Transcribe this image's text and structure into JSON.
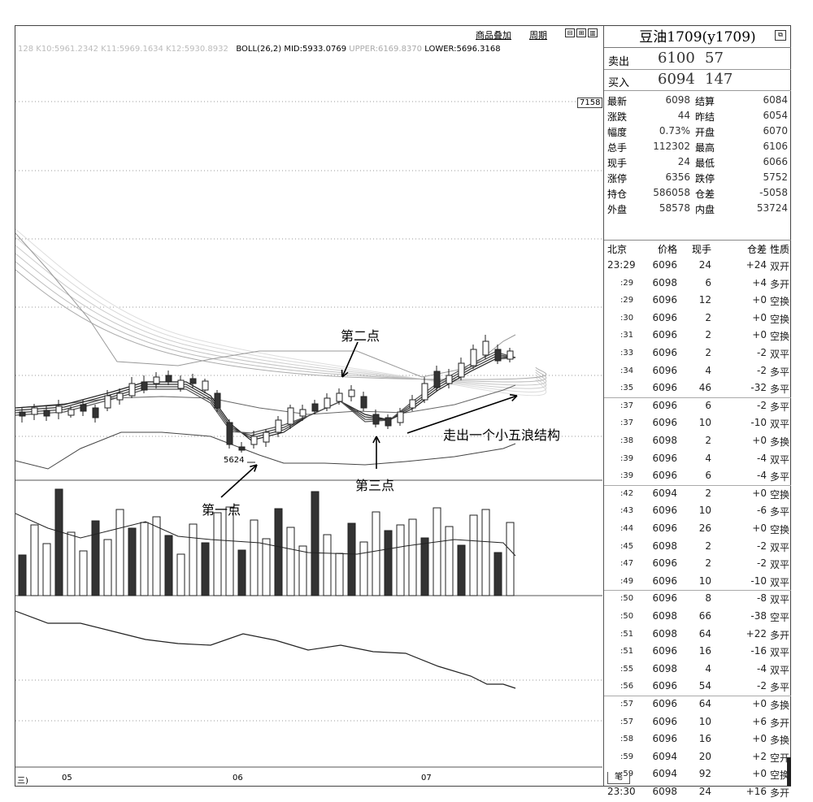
{
  "toolbar": {
    "overlay_label": "商品叠加",
    "period_label": "周期"
  },
  "indicator": {
    "faint_text": "128 K10:5961.2342 K11:5969.1634 K12:5930.8932",
    "boll_label": "BOLL(26,2)",
    "mid": "MID:5933.0769",
    "upper": "UPPER:6169.8370",
    "lower": "LOWER:5696.3168"
  },
  "price_tag": "7158",
  "annotations": {
    "point1": "第一点",
    "point2": "第二点",
    "point3": "第三点",
    "wave": "走出一个小五浪结构",
    "low_label": "5624"
  },
  "x_axis": [
    "05",
    "06",
    "07"
  ],
  "x_axis_left": "三)",
  "panel": {
    "title": "豆油1709(y1709)",
    "sell": {
      "label": "卖出",
      "price": "6100",
      "volume": "57"
    },
    "buy": {
      "label": "买入",
      "price": "6094",
      "volume": "147"
    },
    "stats": [
      [
        "最新",
        "6098",
        "结算",
        "6084"
      ],
      [
        "涨跌",
        "44",
        "昨结",
        "6054"
      ],
      [
        "幅度",
        "0.73%",
        "开盘",
        "6070"
      ],
      [
        "总手",
        "112302",
        "最高",
        "6106"
      ],
      [
        "现手",
        "24",
        "最低",
        "6066"
      ],
      [
        "涨停",
        "6356",
        "跌停",
        "5752"
      ],
      [
        "持仓",
        "586058",
        "仓差",
        "-5058"
      ],
      [
        "外盘",
        "58578",
        "内盘",
        "53724"
      ]
    ],
    "ticks_header": [
      "北京",
      "价格",
      "现手",
      "仓差",
      "性质"
    ],
    "ticks": [
      [
        "23:29",
        "6096",
        "24",
        "+24",
        "双开"
      ],
      [
        ":29",
        "6098",
        "6",
        "+4",
        "多开"
      ],
      [
        ":29",
        "6096",
        "12",
        "+0",
        "空换"
      ],
      [
        ":30",
        "6096",
        "2",
        "+0",
        "空换"
      ],
      [
        ":31",
        "6096",
        "2",
        "+0",
        "空换"
      ],
      [
        ":33",
        "6096",
        "2",
        "-2",
        "双平"
      ],
      [
        ":34",
        "6096",
        "4",
        "-2",
        "多平"
      ],
      [
        ":35",
        "6096",
        "46",
        "-32",
        "多平"
      ],
      [
        ":37",
        "6096",
        "6",
        "-2",
        "多平"
      ],
      [
        ":37",
        "6096",
        "10",
        "-10",
        "双平"
      ],
      [
        ":38",
        "6098",
        "2",
        "+0",
        "多换"
      ],
      [
        ":39",
        "6096",
        "4",
        "-4",
        "双平"
      ],
      [
        ":39",
        "6096",
        "6",
        "-4",
        "多平"
      ],
      [
        ":42",
        "6094",
        "2",
        "+0",
        "空换"
      ],
      [
        ":43",
        "6096",
        "10",
        "-6",
        "多平"
      ],
      [
        ":44",
        "6096",
        "26",
        "+0",
        "空换"
      ],
      [
        ":45",
        "6098",
        "2",
        "-2",
        "双平"
      ],
      [
        ":47",
        "6096",
        "2",
        "-2",
        "双平"
      ],
      [
        ":49",
        "6096",
        "10",
        "-10",
        "双平"
      ],
      [
        ":50",
        "6096",
        "8",
        "-8",
        "双平"
      ],
      [
        ":50",
        "6098",
        "66",
        "-38",
        "空平"
      ],
      [
        ":51",
        "6098",
        "64",
        "+22",
        "多开"
      ],
      [
        ":51",
        "6096",
        "16",
        "-16",
        "双平"
      ],
      [
        ":55",
        "6098",
        "4",
        "-4",
        "双平"
      ],
      [
        ":56",
        "6096",
        "54",
        "-2",
        "多平"
      ],
      [
        ":57",
        "6096",
        "64",
        "+0",
        "多换"
      ],
      [
        ":57",
        "6096",
        "10",
        "+6",
        "多开"
      ],
      [
        ":58",
        "6096",
        "16",
        "+0",
        "多换"
      ],
      [
        ":59",
        "6094",
        "20",
        "+2",
        "空开"
      ],
      [
        ":59",
        "6094",
        "92",
        "+0",
        "空换"
      ],
      [
        "23:30",
        "6098",
        "24",
        "+16",
        "多开"
      ]
    ],
    "bottom_tab": "笔"
  }
}
